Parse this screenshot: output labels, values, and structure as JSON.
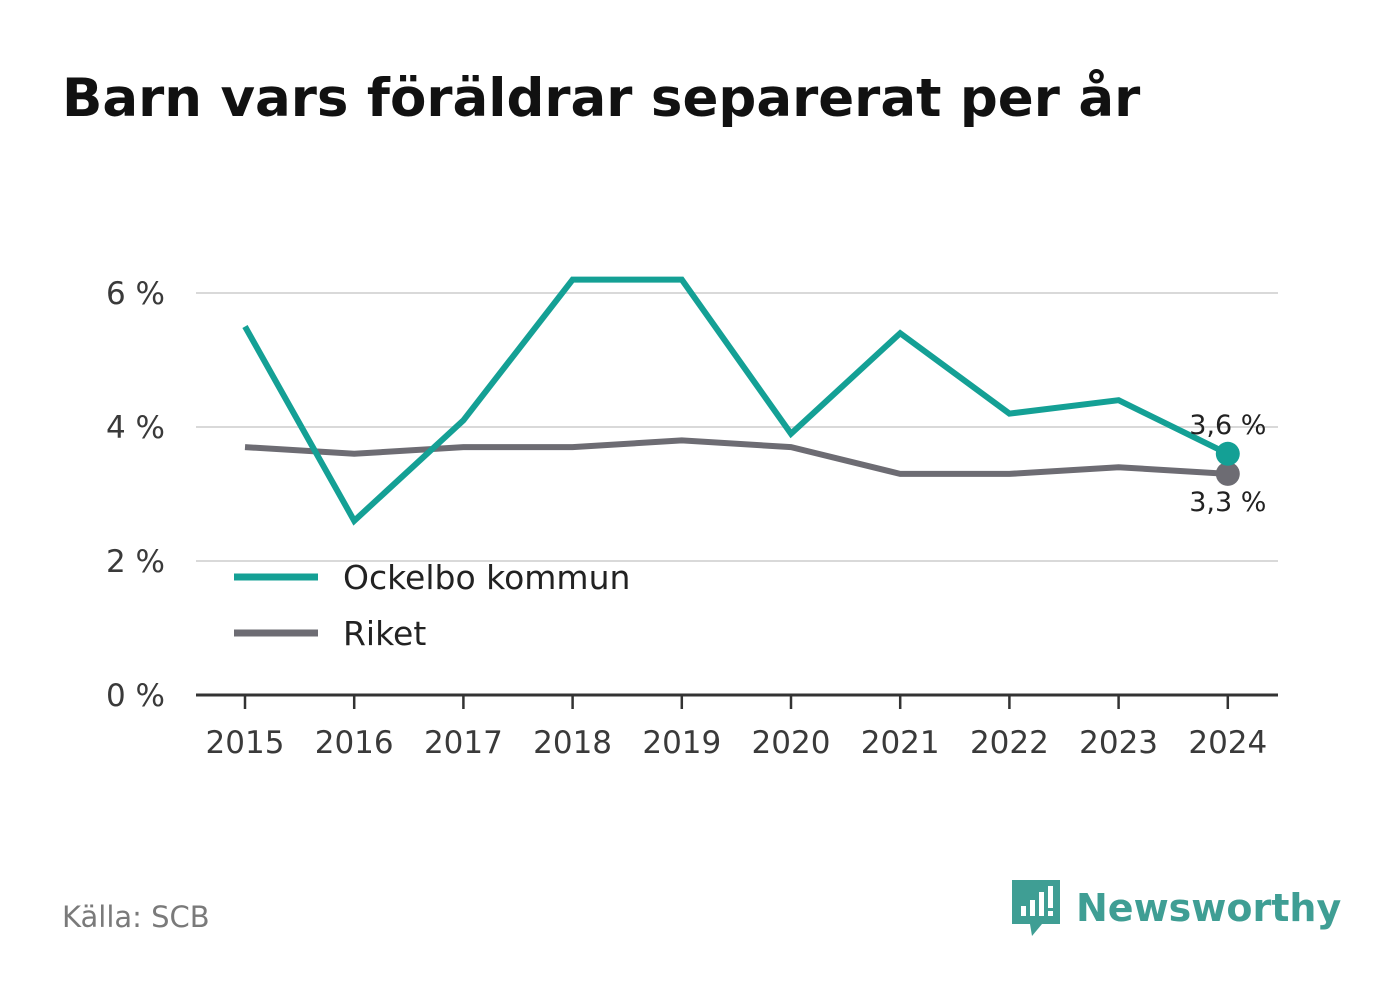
{
  "title": "Barn vars föräldrar separerat per år",
  "source": "Källa: SCB",
  "brand": {
    "name": "Newsworthy",
    "icon": "bar-chart-speech-bubble-icon",
    "color": "#3f9e94"
  },
  "chart_data": {
    "type": "line",
    "title": "Barn vars föräldrar separerat per år",
    "xlabel": "",
    "ylabel": "",
    "x": [
      "2015",
      "2016",
      "2017",
      "2018",
      "2019",
      "2020",
      "2021",
      "2022",
      "2023",
      "2024"
    ],
    "ylim": [
      0,
      6.6
    ],
    "y_ticks": [
      {
        "value": 0,
        "label": "0 %"
      },
      {
        "value": 2,
        "label": "2 %"
      },
      {
        "value": 4,
        "label": "4 %"
      },
      {
        "value": 6,
        "label": "6 %"
      }
    ],
    "grid": true,
    "legend": "bottom-left",
    "series": [
      {
        "name": "Ockelbo kommun",
        "color": "#14a095",
        "values": [
          5.5,
          2.6,
          4.1,
          6.2,
          6.2,
          3.9,
          5.4,
          4.2,
          4.4,
          3.6
        ],
        "end_label": "3,6 %"
      },
      {
        "name": "Riket",
        "color": "#6d6c73",
        "values": [
          3.7,
          3.6,
          3.7,
          3.7,
          3.8,
          3.7,
          3.3,
          3.3,
          3.4,
          3.3
        ],
        "end_label": "3,3 %"
      }
    ]
  }
}
